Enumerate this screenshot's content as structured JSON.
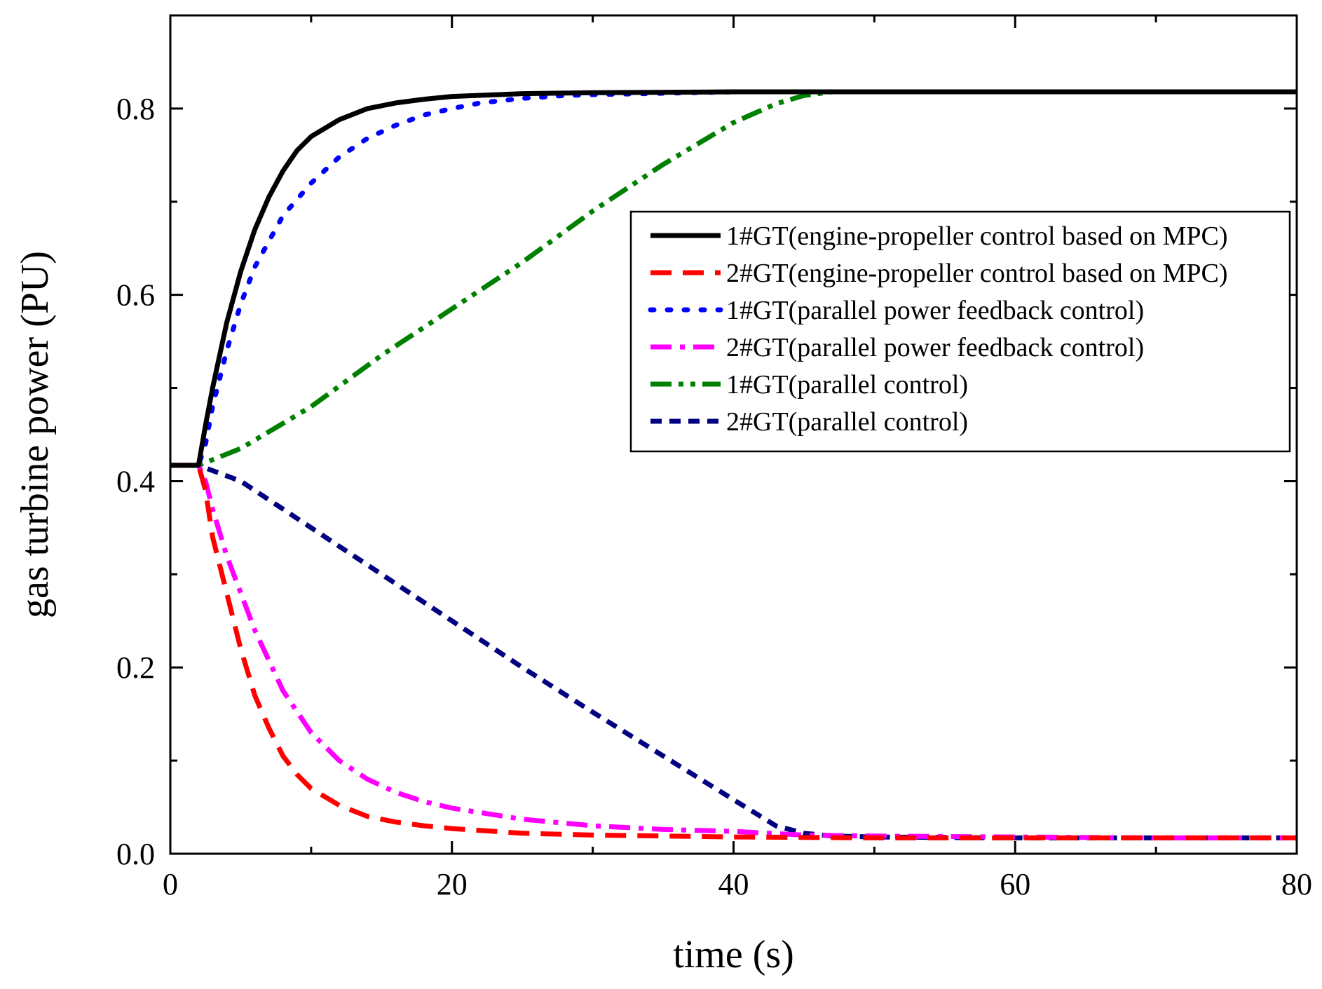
{
  "chart_data": {
    "type": "line",
    "title": "",
    "xlabel": "time (s)",
    "ylabel": "gas turbine power (PU)",
    "xlim": [
      0,
      80
    ],
    "ylim": [
      0,
      0.9
    ],
    "xticks": [
      0,
      20,
      40,
      60,
      80
    ],
    "xtick_labels": [
      "0",
      "20",
      "40",
      "60",
      "80"
    ],
    "yticks": [
      0.0,
      0.2,
      0.4,
      0.6,
      0.8
    ],
    "ytick_labels": [
      "0.0",
      "0.2",
      "0.4",
      "0.6",
      "0.8"
    ],
    "grid": false,
    "legend_position": "top-right",
    "series": [
      {
        "name": "1#GT(engine-propeller control based on MPC)",
        "color": "#000000",
        "style": "solid",
        "x": [
          0,
          2,
          2.5,
          3,
          4,
          5,
          6,
          7,
          8,
          9,
          10,
          12,
          14,
          16,
          18,
          20,
          25,
          30,
          40,
          50,
          60,
          70,
          80
        ],
        "y": [
          0.417,
          0.417,
          0.46,
          0.5,
          0.57,
          0.625,
          0.67,
          0.705,
          0.733,
          0.755,
          0.77,
          0.788,
          0.8,
          0.806,
          0.81,
          0.813,
          0.816,
          0.817,
          0.818,
          0.818,
          0.818,
          0.818,
          0.818
        ]
      },
      {
        "name": "2#GT(engine-propeller control based on MPC)",
        "color": "#ff0000",
        "style": "dashed",
        "x": [
          0,
          2,
          2.5,
          3,
          4,
          5,
          6,
          7,
          8,
          9,
          10,
          12,
          14,
          16,
          18,
          20,
          25,
          30,
          40,
          50,
          60,
          70,
          80
        ],
        "y": [
          0.417,
          0.417,
          0.39,
          0.34,
          0.28,
          0.22,
          0.17,
          0.135,
          0.105,
          0.085,
          0.07,
          0.052,
          0.04,
          0.034,
          0.03,
          0.027,
          0.022,
          0.02,
          0.018,
          0.017,
          0.017,
          0.017,
          0.017
        ]
      },
      {
        "name": "1#GT(parallel power feedback control)",
        "color": "#0000ff",
        "style": "dotted",
        "x": [
          0,
          2,
          2.5,
          3,
          4,
          5,
          6,
          8,
          10,
          12,
          14,
          16,
          18,
          20,
          22,
          25,
          28,
          30,
          40,
          50,
          60,
          70,
          80
        ],
        "y": [
          0.417,
          0.417,
          0.44,
          0.48,
          0.54,
          0.59,
          0.63,
          0.685,
          0.72,
          0.748,
          0.768,
          0.782,
          0.793,
          0.8,
          0.806,
          0.811,
          0.814,
          0.815,
          0.818,
          0.818,
          0.818,
          0.818,
          0.818
        ]
      },
      {
        "name": "2#GT(parallel power feedback control)",
        "color": "#ff00ff",
        "style": "dash-dot",
        "x": [
          0,
          2,
          2.5,
          3,
          4,
          5,
          6,
          8,
          10,
          12,
          14,
          16,
          18,
          20,
          25,
          30,
          35,
          40,
          45,
          50,
          60,
          70,
          80
        ],
        "y": [
          0.417,
          0.417,
          0.4,
          0.37,
          0.32,
          0.28,
          0.24,
          0.175,
          0.13,
          0.1,
          0.08,
          0.066,
          0.056,
          0.049,
          0.037,
          0.03,
          0.026,
          0.024,
          0.02,
          0.019,
          0.018,
          0.017,
          0.017
        ]
      },
      {
        "name": "1#GT(parallel control)",
        "color": "#008000",
        "style": "dash-dot-dot",
        "x": [
          0,
          2,
          5,
          10,
          15,
          20,
          25,
          30,
          35,
          40,
          43,
          45,
          47,
          50,
          60,
          70,
          80
        ],
        "y": [
          0.417,
          0.417,
          0.435,
          0.48,
          0.535,
          0.585,
          0.635,
          0.69,
          0.74,
          0.785,
          0.805,
          0.814,
          0.818,
          0.818,
          0.818,
          0.818,
          0.818
        ]
      },
      {
        "name": "2#GT(parallel control)",
        "color": "#000080",
        "style": "short-dash",
        "x": [
          0,
          2,
          5,
          10,
          15,
          20,
          25,
          30,
          35,
          40,
          43,
          45,
          47,
          50,
          60,
          70,
          80
        ],
        "y": [
          0.417,
          0.417,
          0.4,
          0.35,
          0.3,
          0.25,
          0.2,
          0.152,
          0.105,
          0.058,
          0.03,
          0.022,
          0.019,
          0.018,
          0.017,
          0.017,
          0.017
        ]
      }
    ]
  }
}
